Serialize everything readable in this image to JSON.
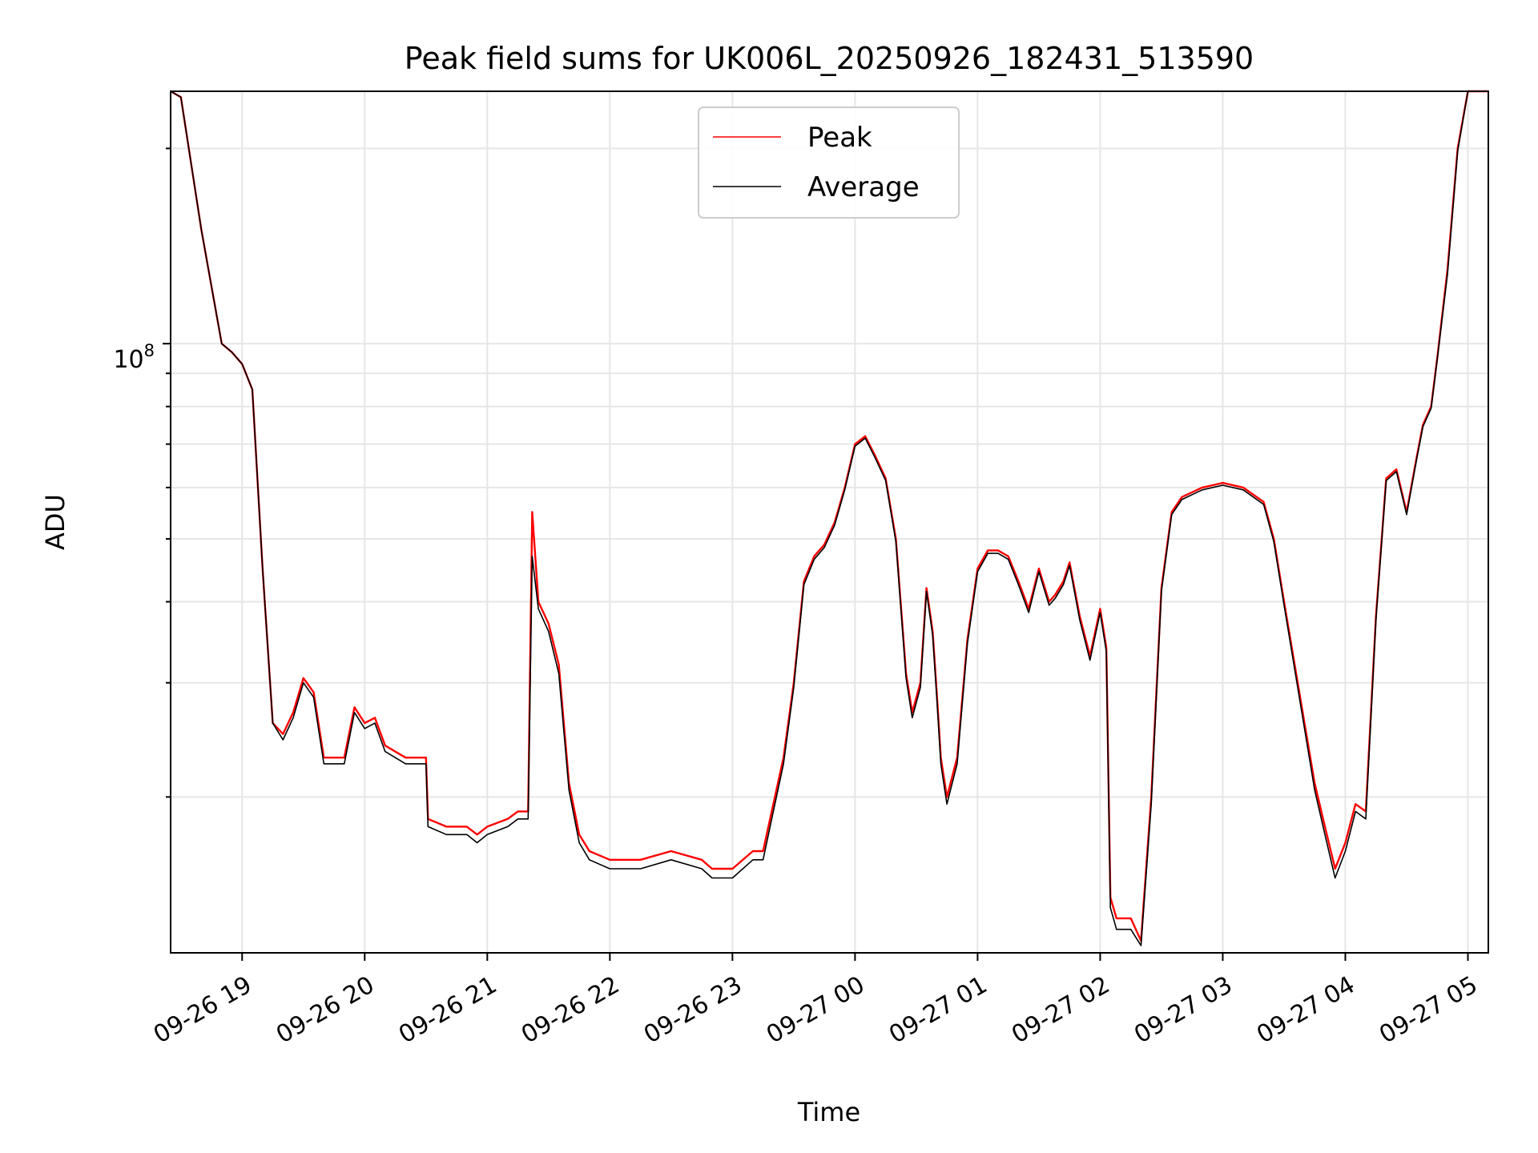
{
  "chart_data": {
    "type": "line",
    "title": "Peak field sums for UK006L_20250926_182431_513590",
    "xlabel": "Time",
    "ylabel": "ADU",
    "yscale": "log",
    "grid": true,
    "legend_position": "top-center",
    "xlim": [
      "2025-09-26 18:25",
      "2025-09-27 05:10"
    ],
    "ylim": [
      11500000,
      245000000
    ],
    "x_ticks": [
      "09-26 19",
      "09-26 20",
      "09-26 21",
      "09-26 22",
      "09-26 23",
      "09-27 00",
      "09-27 01",
      "09-27 02",
      "09-27 03",
      "09-27 04",
      "09-27 05"
    ],
    "y_major_tick_label": {
      "base": "10",
      "exponent": "8"
    },
    "x": [
      "2025-09-26 18:25",
      "2025-09-26 18:30",
      "2025-09-26 18:40",
      "2025-09-26 18:50",
      "2025-09-26 18:55",
      "2025-09-26 19:00",
      "2025-09-26 19:05",
      "2025-09-26 19:10",
      "2025-09-26 19:15",
      "2025-09-26 19:20",
      "2025-09-26 19:25",
      "2025-09-26 19:30",
      "2025-09-26 19:35",
      "2025-09-26 19:40",
      "2025-09-26 19:45",
      "2025-09-26 19:50",
      "2025-09-26 19:55",
      "2025-09-26 20:00",
      "2025-09-26 20:05",
      "2025-09-26 20:10",
      "2025-09-26 20:20",
      "2025-09-26 20:30",
      "2025-09-26 20:31",
      "2025-09-26 20:40",
      "2025-09-26 20:50",
      "2025-09-26 20:55",
      "2025-09-26 21:00",
      "2025-09-26 21:10",
      "2025-09-26 21:15",
      "2025-09-26 21:20",
      "2025-09-26 21:22",
      "2025-09-26 21:25",
      "2025-09-26 21:30",
      "2025-09-26 21:35",
      "2025-09-26 21:40",
      "2025-09-26 21:45",
      "2025-09-26 21:50",
      "2025-09-26 22:00",
      "2025-09-26 22:15",
      "2025-09-26 22:30",
      "2025-09-26 22:45",
      "2025-09-26 22:50",
      "2025-09-26 23:00",
      "2025-09-26 23:10",
      "2025-09-26 23:15",
      "2025-09-26 23:20",
      "2025-09-26 23:25",
      "2025-09-26 23:30",
      "2025-09-26 23:35",
      "2025-09-26 23:40",
      "2025-09-26 23:45",
      "2025-09-26 23:50",
      "2025-09-26 23:55",
      "2025-09-27 00:00",
      "2025-09-27 00:05",
      "2025-09-27 00:10",
      "2025-09-27 00:15",
      "2025-09-27 00:20",
      "2025-09-27 00:25",
      "2025-09-27 00:28",
      "2025-09-27 00:32",
      "2025-09-27 00:35",
      "2025-09-27 00:38",
      "2025-09-27 00:40",
      "2025-09-27 00:42",
      "2025-09-27 00:45",
      "2025-09-27 00:50",
      "2025-09-27 00:55",
      "2025-09-27 01:00",
      "2025-09-27 01:05",
      "2025-09-27 01:10",
      "2025-09-27 01:15",
      "2025-09-27 01:20",
      "2025-09-27 01:25",
      "2025-09-27 01:30",
      "2025-09-27 01:35",
      "2025-09-27 01:38",
      "2025-09-27 01:42",
      "2025-09-27 01:45",
      "2025-09-27 01:50",
      "2025-09-27 01:55",
      "2025-09-27 02:00",
      "2025-09-27 02:03",
      "2025-09-27 02:05",
      "2025-09-27 02:08",
      "2025-09-27 02:10",
      "2025-09-27 02:15",
      "2025-09-27 02:20",
      "2025-09-27 02:25",
      "2025-09-27 02:30",
      "2025-09-27 02:35",
      "2025-09-27 02:40",
      "2025-09-27 02:45",
      "2025-09-27 02:50",
      "2025-09-27 03:00",
      "2025-09-27 03:10",
      "2025-09-27 03:20",
      "2025-09-27 03:25",
      "2025-09-27 03:30",
      "2025-09-27 03:40",
      "2025-09-27 03:45",
      "2025-09-27 03:50",
      "2025-09-27 03:55",
      "2025-09-27 04:00",
      "2025-09-27 04:05",
      "2025-09-27 04:10",
      "2025-09-27 04:15",
      "2025-09-27 04:20",
      "2025-09-27 04:25",
      "2025-09-27 04:30",
      "2025-09-27 04:35",
      "2025-09-27 04:38",
      "2025-09-27 04:42",
      "2025-09-27 04:45",
      "2025-09-27 04:50",
      "2025-09-27 04:55",
      "2025-09-27 05:00",
      "2025-09-27 05:05",
      "2025-09-27 05:10"
    ],
    "series": [
      {
        "name": "Peak",
        "color": "#ff0000",
        "values": [
          245000000,
          240000000,
          150000000,
          100000000,
          97000000,
          93000000,
          85000000,
          45000000,
          26000000,
          25000000,
          27000000,
          30500000,
          29000000,
          23000000,
          23000000,
          23000000,
          27500000,
          26000000,
          26500000,
          24000000,
          23000000,
          23000000,
          18500000,
          18000000,
          18000000,
          17500000,
          18000000,
          18500000,
          19000000,
          19000000,
          55000000,
          40000000,
          37000000,
          32000000,
          21000000,
          17500000,
          16500000,
          16000000,
          16000000,
          16500000,
          16000000,
          15500000,
          15500000,
          16500000,
          16500000,
          19500000,
          23000000,
          30000000,
          43000000,
          47000000,
          49000000,
          53000000,
          60000000,
          70000000,
          72000000,
          67000000,
          62000000,
          50000000,
          31000000,
          27000000,
          30000000,
          42000000,
          36000000,
          29000000,
          23000000,
          20000000,
          23000000,
          35000000,
          45000000,
          48000000,
          48000000,
          47000000,
          43000000,
          39000000,
          45000000,
          40000000,
          41000000,
          43000000,
          46000000,
          38000000,
          33000000,
          39000000,
          34000000,
          14000000,
          13000000,
          13000000,
          13000000,
          12000000,
          20000000,
          42000000,
          55000000,
          58000000,
          59000000,
          60000000,
          61000000,
          60000000,
          57000000,
          50000000,
          40000000,
          26000000,
          21000000,
          18000000,
          15500000,
          17000000,
          19500000,
          19000000,
          38000000,
          62000000,
          64000000,
          55000000,
          67000000,
          75000000,
          80000000,
          95000000,
          130000000,
          200000000,
          245000000,
          245000000,
          245000000
        ]
      },
      {
        "name": "Average",
        "color": "#000000",
        "values": [
          245000000,
          240000000,
          150000000,
          100000000,
          97000000,
          93000000,
          85000000,
          45000000,
          26000000,
          24500000,
          26500000,
          30000000,
          28500000,
          22500000,
          22500000,
          22500000,
          27000000,
          25500000,
          26000000,
          23500000,
          22500000,
          22500000,
          18000000,
          17500000,
          17500000,
          17000000,
          17500000,
          18000000,
          18500000,
          18500000,
          47000000,
          39000000,
          36000000,
          31000000,
          20500000,
          17000000,
          16000000,
          15500000,
          15500000,
          16000000,
          15500000,
          15000000,
          15000000,
          16000000,
          16000000,
          19000000,
          22500000,
          29500000,
          42500000,
          46500000,
          48500000,
          52500000,
          59500000,
          69500000,
          71500000,
          66500000,
          61500000,
          49500000,
          30500000,
          26500000,
          29500000,
          41500000,
          35500000,
          28500000,
          22500000,
          19500000,
          22500000,
          34500000,
          44500000,
          47500000,
          47500000,
          46500000,
          42500000,
          38500000,
          44500000,
          39500000,
          40500000,
          42500000,
          45500000,
          37500000,
          32500000,
          38500000,
          33500000,
          13500000,
          12500000,
          12500000,
          12500000,
          11800000,
          19500000,
          41500000,
          54500000,
          57500000,
          58500000,
          59500000,
          60500000,
          59500000,
          56500000,
          49500000,
          39500000,
          25500000,
          20500000,
          17500000,
          15000000,
          16500000,
          19000000,
          18500000,
          37500000,
          61500000,
          63500000,
          54500000,
          66500000,
          74500000,
          79500000,
          94500000,
          128000000,
          198000000,
          245000000,
          245000000,
          245000000
        ]
      }
    ]
  }
}
